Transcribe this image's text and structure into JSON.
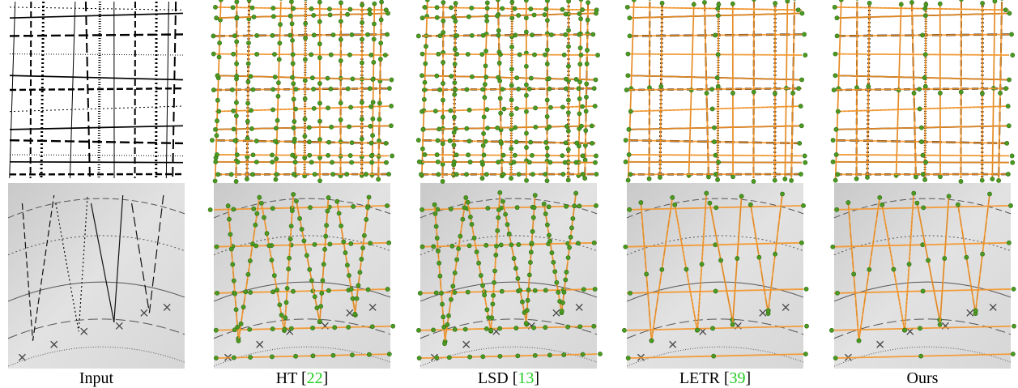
{
  "captions": [
    {
      "text": "Input"
    },
    {
      "text": "HT [",
      "ref": "22",
      "close": "]"
    },
    {
      "text": "LSD [",
      "ref": "13",
      "close": "]"
    },
    {
      "text": "LETR [",
      "ref": "39",
      "close": "]"
    },
    {
      "text": "Ours"
    }
  ]
}
